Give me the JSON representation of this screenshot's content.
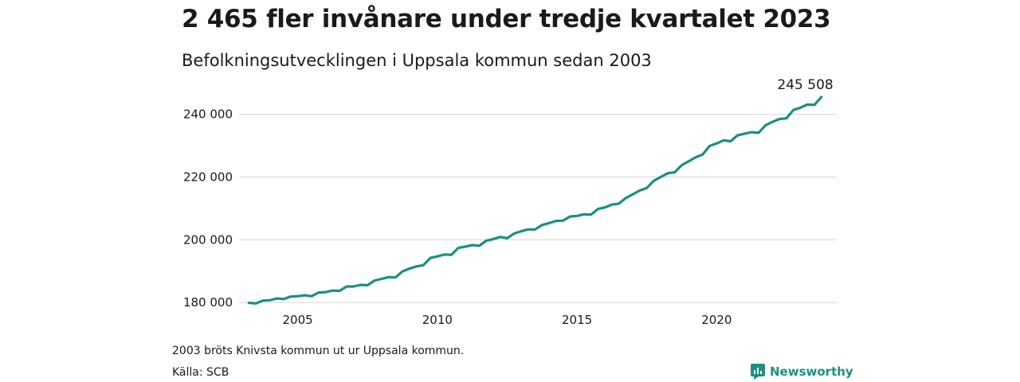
{
  "title": "2 465 fler invånare under tredje kvartalet 2023",
  "subtitle": "Befolkningsutvecklingen i Uppsala kommun sedan 2003",
  "note": "2003 bröts Knivsta kommun ut ur Uppsala kommun.",
  "source": "Källa: SCB",
  "brand": {
    "name": "Newsworthy",
    "icon": "newsworthy-logo-icon",
    "color": "#1f8f82"
  },
  "chart_data": {
    "type": "line",
    "title": "2 465 fler invånare under tredje kvartalet 2023",
    "subtitle": "Befolkningsutvecklingen i Uppsala kommun sedan 2003",
    "xlabel": "",
    "ylabel": "",
    "line_color": "#1a9080",
    "grid": true,
    "grid_axis": "y",
    "xlim": [
      2002.9,
      2024.3
    ],
    "ylim": [
      178500,
      246500
    ],
    "yticks": [
      180000,
      200000,
      220000,
      240000
    ],
    "ytick_labels": [
      "180 000",
      "200 000",
      "220 000",
      "240 000"
    ],
    "xticks": [
      2005,
      2010,
      2015,
      2020
    ],
    "xtick_labels": [
      "2005",
      "2010",
      "2015",
      "2020"
    ],
    "end_label": "245 508",
    "series": [
      {
        "values": [
          [
            2003.25,
            179900
          ],
          [
            2003.5,
            179700
          ],
          [
            2003.75,
            180600
          ],
          [
            2004.0,
            180700
          ],
          [
            2004.25,
            181300
          ],
          [
            2004.5,
            181100
          ],
          [
            2004.75,
            181900
          ],
          [
            2005.0,
            182000
          ],
          [
            2005.25,
            182300
          ],
          [
            2005.5,
            182000
          ],
          [
            2005.75,
            183200
          ],
          [
            2006.0,
            183300
          ],
          [
            2006.25,
            183800
          ],
          [
            2006.5,
            183700
          ],
          [
            2006.75,
            185100
          ],
          [
            2007.0,
            185100
          ],
          [
            2007.25,
            185600
          ],
          [
            2007.5,
            185500
          ],
          [
            2007.75,
            187000
          ],
          [
            2008.0,
            187500
          ],
          [
            2008.25,
            188100
          ],
          [
            2008.5,
            188000
          ],
          [
            2008.75,
            189900
          ],
          [
            2009.0,
            190800
          ],
          [
            2009.25,
            191500
          ],
          [
            2009.5,
            191900
          ],
          [
            2009.75,
            194200
          ],
          [
            2010.0,
            194700
          ],
          [
            2010.25,
            195300
          ],
          [
            2010.5,
            195200
          ],
          [
            2010.75,
            197400
          ],
          [
            2011.0,
            197800
          ],
          [
            2011.25,
            198300
          ],
          [
            2011.5,
            198100
          ],
          [
            2011.75,
            199700
          ],
          [
            2012.0,
            200200
          ],
          [
            2012.25,
            200900
          ],
          [
            2012.5,
            200500
          ],
          [
            2012.75,
            202000
          ],
          [
            2013.0,
            202700
          ],
          [
            2013.25,
            203300
          ],
          [
            2013.5,
            203300
          ],
          [
            2013.75,
            204700
          ],
          [
            2014.0,
            205300
          ],
          [
            2014.25,
            206000
          ],
          [
            2014.5,
            206100
          ],
          [
            2014.75,
            207400
          ],
          [
            2015.0,
            207600
          ],
          [
            2015.25,
            208100
          ],
          [
            2015.5,
            208000
          ],
          [
            2015.75,
            209800
          ],
          [
            2016.0,
            210300
          ],
          [
            2016.25,
            211200
          ],
          [
            2016.5,
            211500
          ],
          [
            2016.75,
            213300
          ],
          [
            2017.0,
            214500
          ],
          [
            2017.25,
            215700
          ],
          [
            2017.5,
            216500
          ],
          [
            2017.75,
            218800
          ],
          [
            2018.0,
            220000
          ],
          [
            2018.25,
            221200
          ],
          [
            2018.5,
            221500
          ],
          [
            2018.75,
            223800
          ],
          [
            2019.0,
            225000
          ],
          [
            2019.25,
            226300
          ],
          [
            2019.5,
            227200
          ],
          [
            2019.75,
            229900
          ],
          [
            2020.0,
            230700
          ],
          [
            2020.25,
            231700
          ],
          [
            2020.5,
            231400
          ],
          [
            2020.75,
            233300
          ],
          [
            2021.0,
            233800
          ],
          [
            2021.25,
            234300
          ],
          [
            2021.5,
            234100
          ],
          [
            2021.75,
            236500
          ],
          [
            2022.0,
            237600
          ],
          [
            2022.25,
            238500
          ],
          [
            2022.5,
            238700
          ],
          [
            2022.75,
            241400
          ],
          [
            2023.0,
            242100
          ],
          [
            2023.25,
            243100
          ],
          [
            2023.5,
            243000
          ],
          [
            2023.75,
            245508
          ]
        ]
      }
    ]
  }
}
